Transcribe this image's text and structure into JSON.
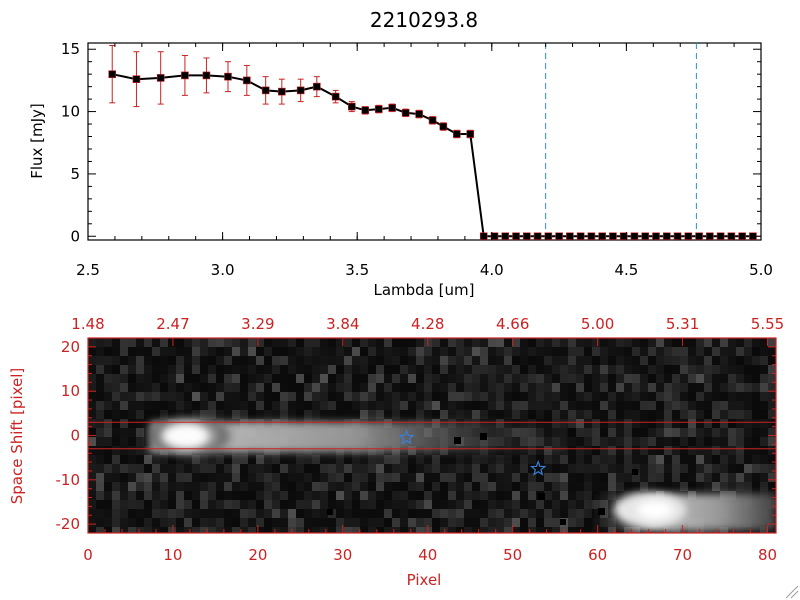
{
  "chart_data": [
    {
      "type": "line",
      "title": "2210293.8",
      "xlabel": "Lambda [um]",
      "ylabel": "Flux [mJy]",
      "xlim": [
        2.5,
        5.0
      ],
      "ylim": [
        -0.3,
        15.5
      ],
      "xticks": [
        "2.5",
        "3.0",
        "3.5",
        "4.0",
        "4.5",
        "5.0"
      ],
      "xtick_values": [
        2.5,
        3.0,
        3.5,
        4.0,
        4.5,
        5.0
      ],
      "yticks": [
        "0",
        "5",
        "10",
        "15"
      ],
      "ytick_values": [
        0,
        5,
        10,
        15
      ],
      "series": [
        {
          "x": [
            2.59,
            2.68,
            2.77,
            2.86,
            2.94,
            3.02,
            3.09,
            3.16,
            3.22,
            3.29,
            3.35,
            3.42,
            3.48,
            3.53,
            3.58,
            3.63,
            3.68,
            3.73,
            3.78,
            3.82,
            3.87,
            3.92,
            3.97,
            4.01,
            4.05,
            4.09,
            4.13,
            4.17,
            4.21,
            4.25,
            4.29,
            4.33,
            4.37,
            4.41,
            4.45,
            4.49,
            4.53,
            4.57,
            4.61,
            4.65,
            4.69,
            4.73,
            4.77,
            4.81,
            4.85,
            4.89,
            4.93,
            4.97
          ],
          "y": [
            13.0,
            12.6,
            12.7,
            12.9,
            12.9,
            12.8,
            12.5,
            11.7,
            11.6,
            11.7,
            12.0,
            11.2,
            10.4,
            10.1,
            10.2,
            10.3,
            9.9,
            9.8,
            9.3,
            8.8,
            8.2,
            8.2,
            0.0,
            0.0,
            0.0,
            0.0,
            0.0,
            0.0,
            0.0,
            0.0,
            0.0,
            0.0,
            0.0,
            0.0,
            0.0,
            0.0,
            0.0,
            0.0,
            0.0,
            0.0,
            0.0,
            0.0,
            0.0,
            0.0,
            0.0,
            0.0,
            0.0,
            0.0
          ],
          "yerr": [
            2.3,
            2.2,
            2.1,
            1.6,
            1.4,
            1.2,
            1.2,
            1.1,
            1.0,
            0.9,
            0.8,
            0.5,
            0.4,
            0.3,
            0.3,
            0.3,
            0.3,
            0.3,
            0.3,
            0.3,
            0.3,
            0.3,
            0,
            0,
            0,
            0,
            0,
            0,
            0,
            0,
            0,
            0,
            0,
            0,
            0,
            0,
            0,
            0,
            0,
            0,
            0,
            0,
            0,
            0,
            0,
            0,
            0,
            0
          ]
        }
      ],
      "vertical_lines": [
        4.2,
        4.76
      ],
      "colors": {
        "line": "#000000",
        "marker": "#000000",
        "errorbar": "#cc2222",
        "vline": "#2a8fc9"
      }
    },
    {
      "type": "heatmap",
      "xlabel": "Pixel",
      "ylabel": "Space Shift [pixel]",
      "xlim": [
        0,
        81
      ],
      "ylim": [
        -22,
        22
      ],
      "xticks": [
        "0",
        "10",
        "20",
        "30",
        "40",
        "50",
        "60",
        "70",
        "80"
      ],
      "xtick_values": [
        0,
        10,
        20,
        30,
        40,
        50,
        60,
        70,
        80
      ],
      "yticks": [
        "-20",
        "-10",
        "0",
        "10",
        "20"
      ],
      "ytick_values": [
        -20,
        -10,
        0,
        10,
        20
      ],
      "top_axis_labels": [
        "1.48",
        "2.47",
        "3.29",
        "3.84",
        "4.28",
        "4.66",
        "5.00",
        "5.31",
        "5.55"
      ],
      "top_axis_positions": [
        0,
        10,
        20,
        30,
        40,
        50,
        60,
        70,
        80
      ],
      "horizontal_lines": [
        3,
        -3
      ],
      "markers": [
        {
          "type": "star",
          "x": 37.5,
          "y": -0.5
        },
        {
          "type": "star",
          "x": 53,
          "y": -7.5
        }
      ],
      "traces": [
        {
          "x_start": 6,
          "x_end": 70,
          "y": 0,
          "peak_x": 11
        },
        {
          "x_start": 58,
          "x_end": 81,
          "y": -17,
          "peak_x": 66
        }
      ],
      "colors": {
        "axis": "#cc2222",
        "marker": "#3a7fd5",
        "guide_line": "#cc2222"
      }
    }
  ]
}
